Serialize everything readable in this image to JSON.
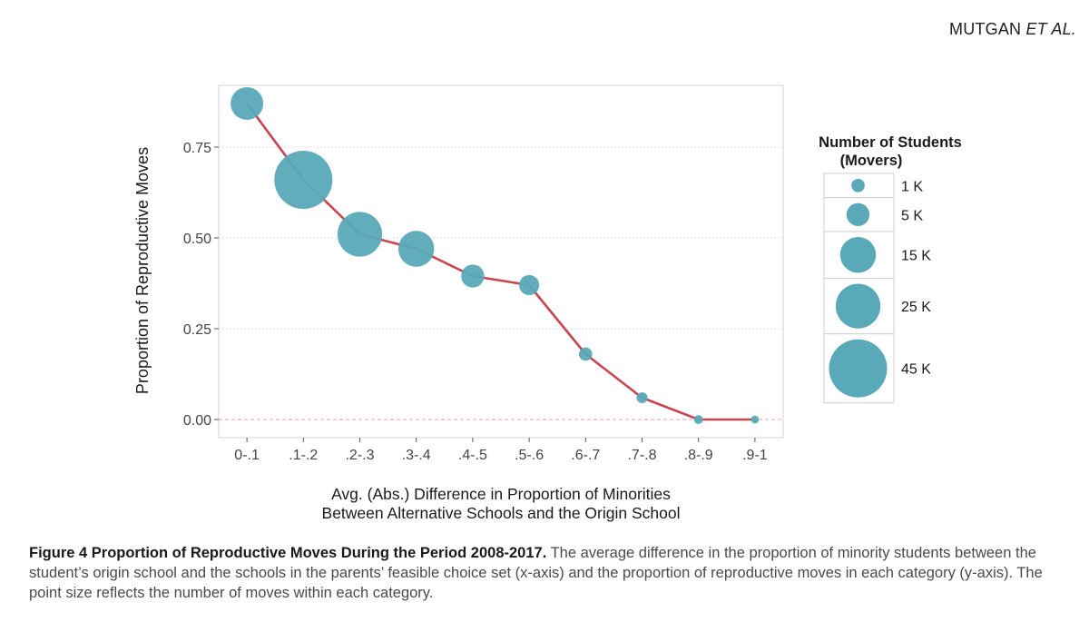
{
  "header": {
    "authors": "MUTGAN",
    "etal": "ET AL."
  },
  "chart_data": {
    "type": "scatter",
    "overlay": "line",
    "categories": [
      "0-.1",
      ".1-.2",
      ".2-.3",
      ".3-.4",
      ".4-.5",
      ".5-.6",
      ".6-.7",
      ".7-.8",
      ".8-.9",
      ".9-1"
    ],
    "values": [
      0.87,
      0.66,
      0.51,
      0.47,
      0.395,
      0.37,
      0.18,
      0.06,
      0.0,
      0.0
    ],
    "sizes_k": [
      12,
      45,
      25,
      15,
      5,
      3.5,
      1,
      0.5,
      0.2,
      0.1
    ],
    "xlabel": [
      "Avg. (Abs.) Difference in Proportion of Minorities",
      "Between Alternative Schools and the Origin School"
    ],
    "ylabel": "Proportion of Reproductive Moves",
    "ylim": [
      -0.05,
      0.92
    ],
    "yticks": [
      0.0,
      0.25,
      0.5,
      0.75
    ],
    "ytick_labels": [
      "0.00",
      "0.25",
      "0.50",
      "0.75"
    ],
    "grid": true,
    "legend": {
      "title": [
        "Number of Students",
        "(Movers)"
      ],
      "entries": [
        {
          "label": "1 K",
          "value_k": 1
        },
        {
          "label": "5 K",
          "value_k": 5
        },
        {
          "label": "15 K",
          "value_k": 15
        },
        {
          "label": "25 K",
          "value_k": 25
        },
        {
          "label": "45 K",
          "value_k": 45
        }
      ],
      "position": "right"
    },
    "colors": {
      "points": "#5aa9b8",
      "line": "#c9444d",
      "zero_line": "#f0a0a8",
      "grid": "#e2e2e2"
    }
  },
  "caption": {
    "title": "Figure 4 Proportion of Reproductive Moves During the Period 2008-2017.",
    "text": " The average difference in the proportion of minority students between the student’s origin school and the schools in the parents’ feasible choice set (x-axis) and the proportion of reproductive moves in each category (y-axis). The point size reflects the number of moves within each category."
  }
}
